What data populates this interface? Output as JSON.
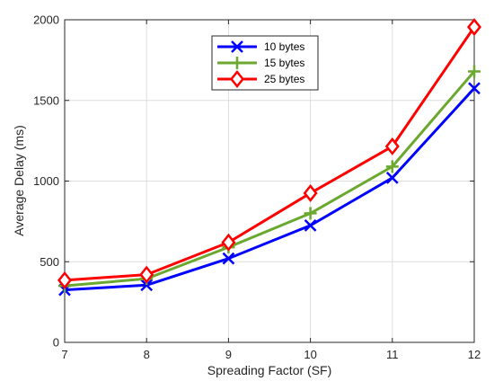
{
  "chart_data": {
    "type": "line",
    "title": "",
    "xlabel": "Spreading Factor (SF)",
    "ylabel": "Average Delay (ms)",
    "x": [
      7,
      8,
      9,
      10,
      11,
      12
    ],
    "xlim": [
      7,
      12
    ],
    "ylim": [
      0,
      2000
    ],
    "xticks": [
      7,
      8,
      9,
      10,
      11,
      12
    ],
    "yticks": [
      0,
      500,
      1000,
      1500,
      2000
    ],
    "grid": true,
    "legend_position": "top-center",
    "series": [
      {
        "name": "10 bytes",
        "color": "#0000ff",
        "marker": "x",
        "values": [
          325,
          355,
          520,
          725,
          1020,
          1575
        ]
      },
      {
        "name": "15 bytes",
        "color": "#6aa82f",
        "marker": "plus",
        "values": [
          350,
          395,
          590,
          800,
          1090,
          1680
        ]
      },
      {
        "name": "25 bytes",
        "color": "#ff0000",
        "marker": "diamond",
        "values": [
          385,
          420,
          620,
          925,
          1215,
          1955
        ]
      }
    ]
  }
}
